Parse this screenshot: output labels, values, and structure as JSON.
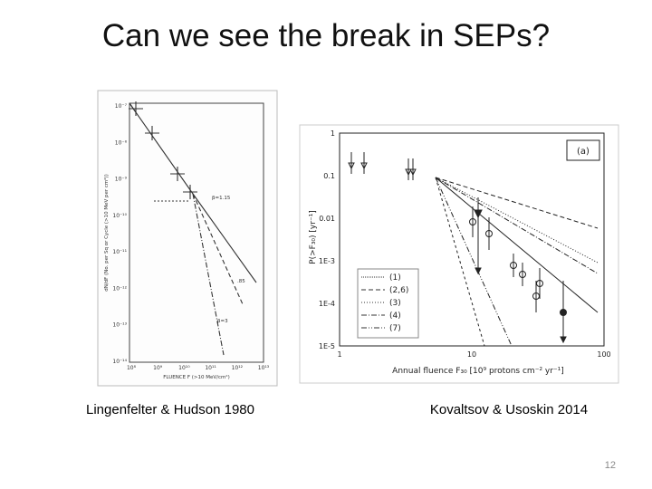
{
  "header": {
    "title": "Can we see the break in SEPs?"
  },
  "figures": [
    {
      "y_ticks": [
        "10⁻⁷",
        "10⁻⁸",
        "10⁻⁹",
        "10⁻¹⁰",
        "10⁻¹¹",
        "10⁻¹²",
        "10⁻¹³",
        "10⁻¹⁴"
      ],
      "x_ticks": [
        "10⁸",
        "10⁹",
        "10¹⁰",
        "10¹¹",
        "10¹²",
        "10¹³"
      ],
      "y_label": "dN/dF (No. per Sq or Cycle (>10 MeV per cm²))",
      "x_label": "FLUENCE F (>10 MeV/cm²)",
      "annotations": [
        "β=1.15",
        ".85",
        "β=3"
      ],
      "caption": "Lingenfelter & Hudson 1980"
    },
    {
      "panel": "(a)",
      "y_ticks": [
        "1",
        "0.1",
        "0.01",
        "1E-3",
        "1E-4",
        "1E-5"
      ],
      "x_ticks": [
        "1",
        "10",
        "100"
      ],
      "y_label": "P(>F₃₀) [yr⁻¹]",
      "x_label": "Annual fluence F₃₀ [10⁹ protons cm⁻² yr⁻¹]",
      "legend": [
        "(1)",
        "(2,6)",
        "(3)",
        "(4)",
        "(7)"
      ],
      "caption": "Kovaltsov & Usoskin 2014"
    }
  ],
  "footer": {
    "page": "12"
  }
}
